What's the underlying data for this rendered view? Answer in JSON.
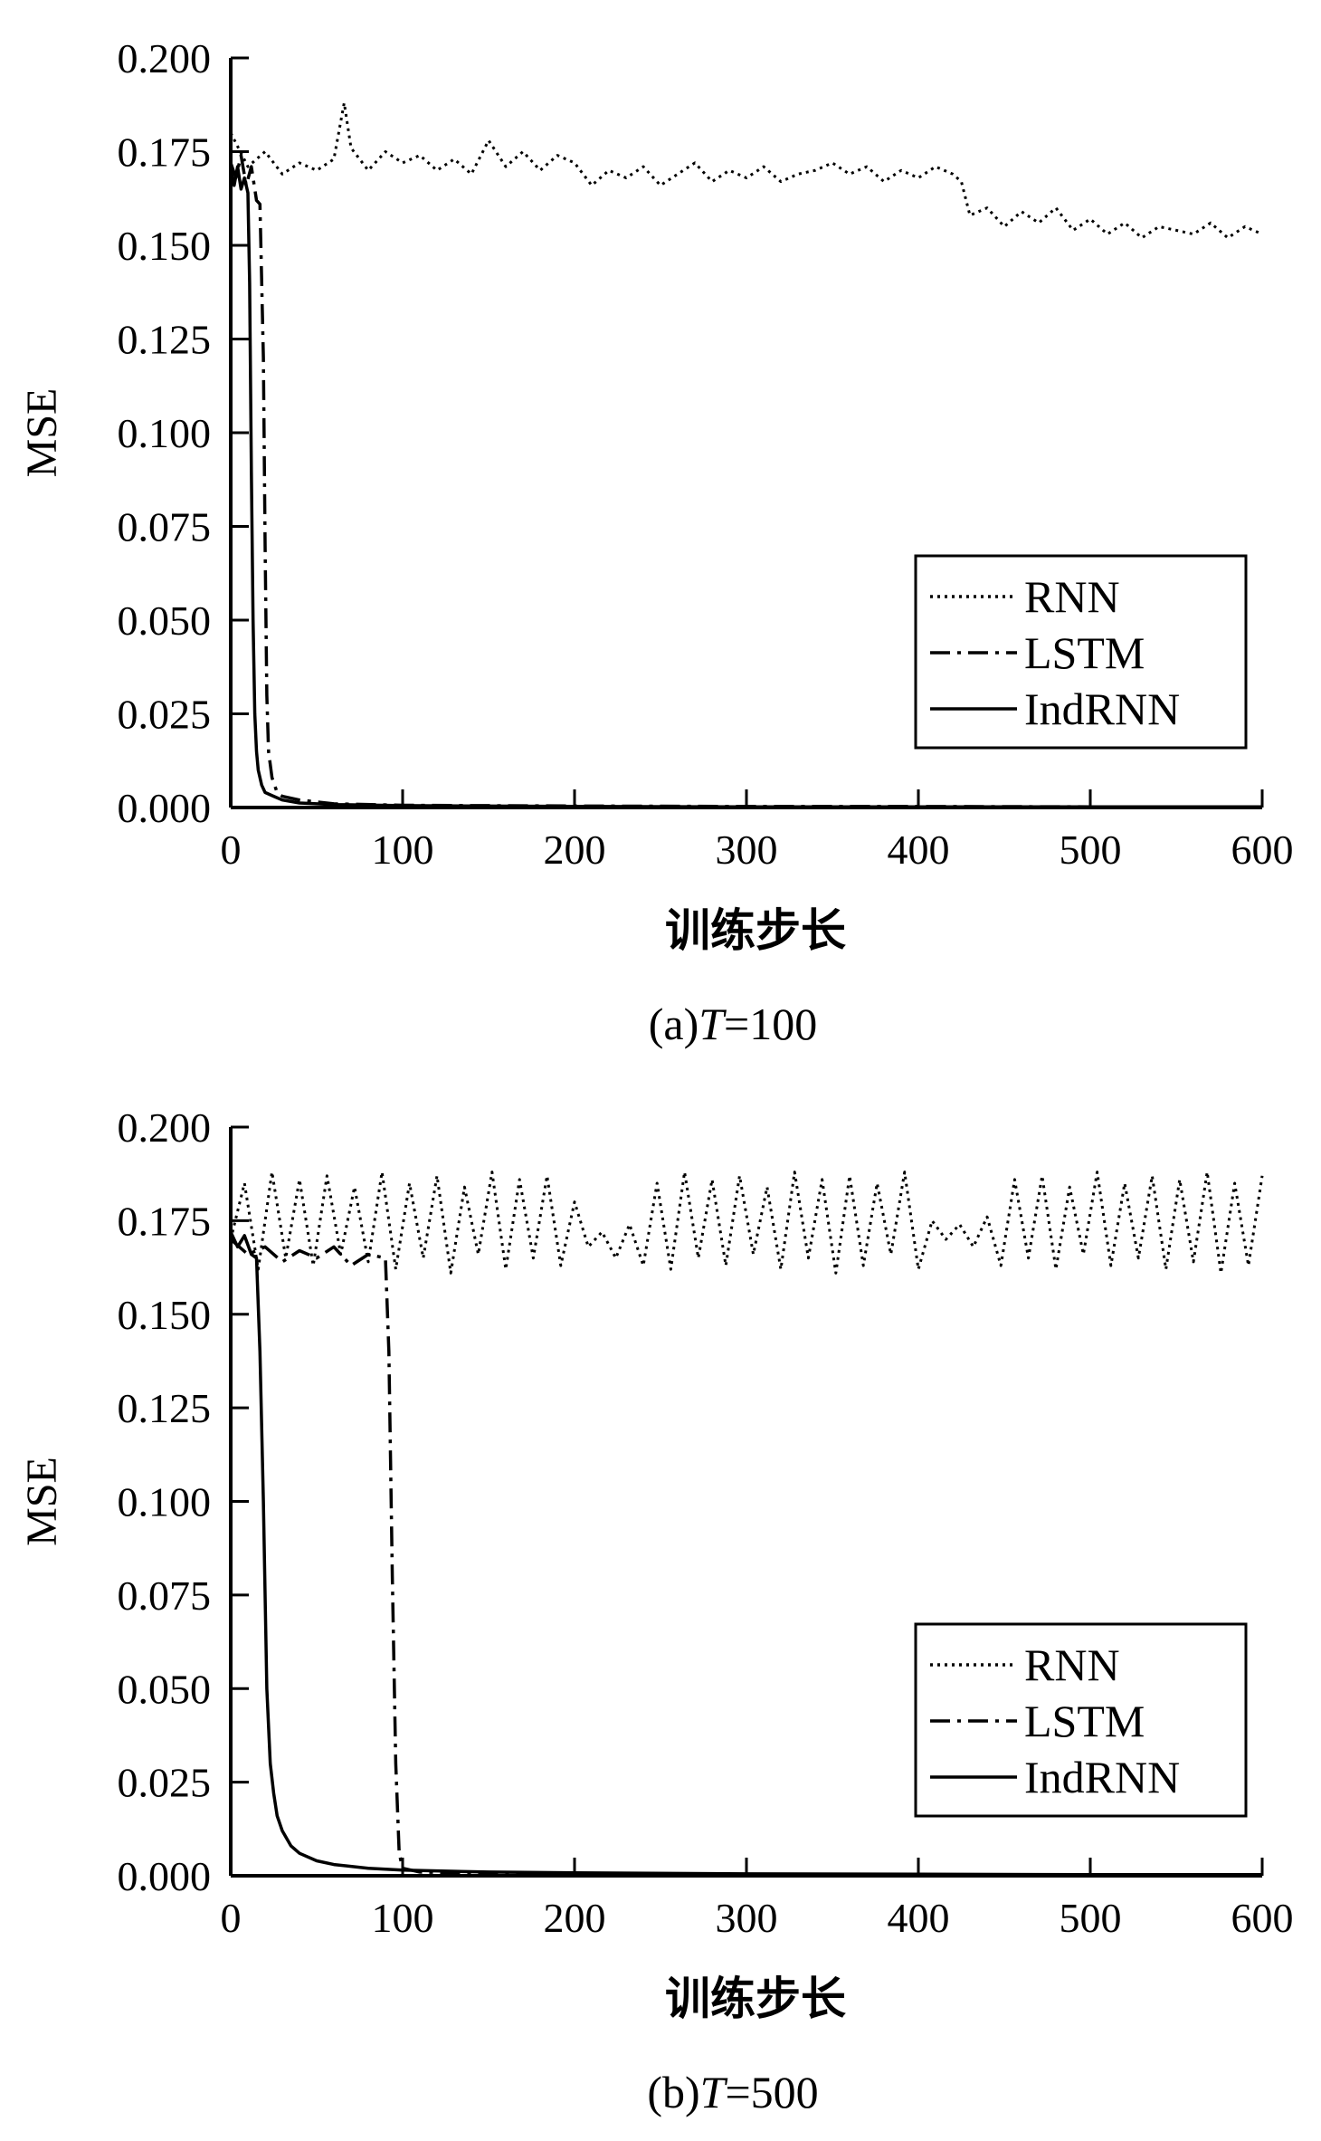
{
  "chart_data": [
    {
      "type": "line",
      "caption": {
        "prefix": "(a)",
        "var": "T",
        "rest": "=100"
      },
      "xlabel": "训练步长",
      "ylabel": "MSE",
      "xlim": [
        0,
        600
      ],
      "ylim": [
        0,
        0.2
      ],
      "xticks": [
        "0",
        "100",
        "200",
        "300",
        "400",
        "500",
        "600"
      ],
      "yticks": [
        "0.000",
        "0.025",
        "0.050",
        "0.075",
        "0.100",
        "0.125",
        "0.150",
        "0.175",
        "0.200"
      ],
      "legend": "bottom-right",
      "series": [
        {
          "name": "RNN",
          "style": "dotted",
          "x": [
            0,
            10,
            20,
            30,
            40,
            50,
            60,
            66,
            70,
            80,
            90,
            100,
            110,
            120,
            130,
            140,
            150,
            160,
            170,
            180,
            190,
            200,
            210,
            220,
            230,
            240,
            250,
            260,
            270,
            280,
            290,
            300,
            310,
            320,
            330,
            340,
            350,
            360,
            370,
            380,
            390,
            400,
            410,
            420,
            425,
            430,
            440,
            450,
            460,
            470,
            480,
            490,
            500,
            510,
            520,
            530,
            540,
            550,
            560,
            570,
            580,
            590,
            600
          ],
          "y": [
            0.18,
            0.171,
            0.175,
            0.169,
            0.172,
            0.17,
            0.173,
            0.188,
            0.176,
            0.17,
            0.175,
            0.172,
            0.174,
            0.17,
            0.173,
            0.169,
            0.178,
            0.171,
            0.175,
            0.17,
            0.174,
            0.172,
            0.166,
            0.17,
            0.168,
            0.171,
            0.166,
            0.169,
            0.172,
            0.167,
            0.17,
            0.168,
            0.171,
            0.167,
            0.169,
            0.17,
            0.172,
            0.169,
            0.171,
            0.167,
            0.17,
            0.168,
            0.171,
            0.169,
            0.167,
            0.158,
            0.16,
            0.155,
            0.159,
            0.156,
            0.16,
            0.154,
            0.157,
            0.153,
            0.156,
            0.152,
            0.155,
            0.154,
            0.153,
            0.156,
            0.152,
            0.155,
            0.153
          ]
        },
        {
          "name": "LSTM",
          "style": "dashdot",
          "x": [
            0,
            3,
            6,
            9,
            12,
            15,
            17,
            19,
            20,
            21,
            22,
            24,
            27,
            30,
            40,
            60,
            100,
            200,
            300,
            400,
            500,
            600
          ],
          "y": [
            0.172,
            0.168,
            0.174,
            0.166,
            0.171,
            0.162,
            0.161,
            0.12,
            0.07,
            0.03,
            0.015,
            0.008,
            0.004,
            0.003,
            0.002,
            0.001,
            0.0006,
            0.0004,
            0.0003,
            0.0003,
            0.0002,
            0.0002
          ]
        },
        {
          "name": "IndRNN",
          "style": "solid",
          "x": [
            0,
            2,
            4,
            6,
            8,
            10,
            11,
            12,
            13,
            14,
            15,
            16,
            18,
            20,
            25,
            30,
            40,
            60,
            100,
            200,
            300,
            400,
            500,
            600
          ],
          "y": [
            0.17,
            0.166,
            0.171,
            0.165,
            0.168,
            0.164,
            0.14,
            0.09,
            0.05,
            0.025,
            0.015,
            0.01,
            0.006,
            0.004,
            0.003,
            0.002,
            0.0012,
            0.0008,
            0.0005,
            0.0003,
            0.0002,
            0.0002,
            0.0002,
            0.0002
          ]
        }
      ]
    },
    {
      "type": "line",
      "caption": {
        "prefix": "(b)",
        "var": "T",
        "rest": "=500"
      },
      "xlabel": "训练步长",
      "ylabel": "MSE",
      "xlim": [
        0,
        600
      ],
      "ylim": [
        0,
        0.2
      ],
      "xticks": [
        "0",
        "100",
        "200",
        "300",
        "400",
        "500",
        "600"
      ],
      "yticks": [
        "0.000",
        "0.025",
        "0.050",
        "0.075",
        "0.100",
        "0.125",
        "0.150",
        "0.175",
        "0.200"
      ],
      "legend": "bottom-right",
      "series": [
        {
          "name": "RNN",
          "style": "dotted",
          "x": [
            0,
            8,
            16,
            24,
            32,
            40,
            48,
            56,
            64,
            72,
            80,
            88,
            96,
            104,
            112,
            120,
            128,
            136,
            144,
            152,
            160,
            168,
            176,
            184,
            192,
            200,
            208,
            216,
            224,
            232,
            240,
            248,
            256,
            264,
            272,
            280,
            288,
            296,
            304,
            312,
            320,
            328,
            336,
            344,
            352,
            360,
            368,
            376,
            384,
            392,
            400,
            408,
            416,
            424,
            432,
            440,
            448,
            456,
            464,
            472,
            480,
            488,
            496,
            504,
            512,
            520,
            528,
            536,
            544,
            552,
            560,
            568,
            576,
            584,
            592,
            600
          ],
          "y": [
            0.17,
            0.185,
            0.162,
            0.188,
            0.165,
            0.186,
            0.163,
            0.187,
            0.166,
            0.184,
            0.164,
            0.188,
            0.162,
            0.185,
            0.165,
            0.187,
            0.161,
            0.184,
            0.166,
            0.188,
            0.162,
            0.186,
            0.165,
            0.187,
            0.163,
            0.18,
            0.168,
            0.172,
            0.165,
            0.174,
            0.163,
            0.185,
            0.162,
            0.188,
            0.165,
            0.186,
            0.163,
            0.187,
            0.166,
            0.184,
            0.162,
            0.188,
            0.165,
            0.186,
            0.161,
            0.187,
            0.163,
            0.185,
            0.166,
            0.188,
            0.162,
            0.175,
            0.17,
            0.174,
            0.168,
            0.176,
            0.163,
            0.186,
            0.165,
            0.187,
            0.162,
            0.184,
            0.166,
            0.188,
            0.163,
            0.185,
            0.165,
            0.187,
            0.162,
            0.186,
            0.164,
            0.188,
            0.161,
            0.185,
            0.163,
            0.187
          ]
        },
        {
          "name": "LSTM",
          "style": "dashdot",
          "x": [
            0,
            10,
            20,
            30,
            40,
            50,
            60,
            70,
            80,
            90,
            92,
            94,
            96,
            98,
            100,
            110,
            150,
            200,
            300,
            400,
            500,
            600
          ],
          "y": [
            0.17,
            0.166,
            0.168,
            0.164,
            0.167,
            0.165,
            0.168,
            0.163,
            0.166,
            0.165,
            0.14,
            0.08,
            0.03,
            0.006,
            0.002,
            0.001,
            0.0007,
            0.0005,
            0.0004,
            0.0003,
            0.0003,
            0.0003
          ]
        },
        {
          "name": "IndRNN",
          "style": "solid",
          "x": [
            0,
            4,
            8,
            12,
            15,
            17,
            19,
            21,
            23,
            25,
            27,
            30,
            35,
            40,
            50,
            60,
            80,
            100,
            150,
            200,
            300,
            400,
            500,
            600
          ],
          "y": [
            0.172,
            0.168,
            0.171,
            0.166,
            0.165,
            0.14,
            0.1,
            0.05,
            0.03,
            0.022,
            0.016,
            0.012,
            0.008,
            0.006,
            0.004,
            0.003,
            0.002,
            0.0015,
            0.001,
            0.0008,
            0.0005,
            0.0004,
            0.0003,
            0.0003
          ]
        }
      ]
    }
  ]
}
